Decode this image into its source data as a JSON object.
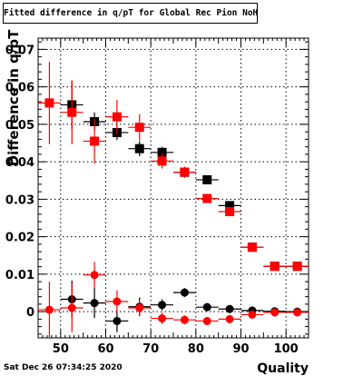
{
  "title": "Fitted difference in q/pT for Global Rec Pion NoHits",
  "datestamp": "Sat Dec 26 07:34:25 2020",
  "colors": {
    "series_black": "#000000",
    "series_red": "#ff0000",
    "grid": "#000000",
    "background": "#ffffff"
  },
  "chart_data": {
    "type": "scatter",
    "title": "Fitted difference in q/pT for Global Rec Pion NoHits",
    "xlabel": "Quality",
    "ylabel": "Difference in q/pT",
    "xlim": [
      45,
      105
    ],
    "ylim": [
      -0.007,
      0.073
    ],
    "grid": true,
    "x_ticks": [
      50,
      60,
      70,
      80,
      90,
      100
    ],
    "x_tick_labels": [
      "50",
      "60",
      "70",
      "80",
      "90",
      "100"
    ],
    "y_ticks": [
      0,
      0.01,
      0.02,
      0.03,
      0.04,
      0.05,
      0.06,
      0.07
    ],
    "y_tick_labels": [
      "0",
      "0.01",
      "0.02",
      "0.03",
      "0.04",
      "0.05",
      "0.06",
      "0.07"
    ],
    "series": [
      {
        "marker": "square",
        "color": "#000000",
        "points": [
          {
            "x": 52.5,
            "y": 0.0552,
            "err": 0.0065
          },
          {
            "x": 57.5,
            "y": 0.0507,
            "err": 0.0025
          },
          {
            "x": 62.5,
            "y": 0.0478,
            "err": 0.002
          },
          {
            "x": 67.5,
            "y": 0.0435,
            "err": 0.002
          },
          {
            "x": 72.5,
            "y": 0.0425,
            "err": 0.0015
          },
          {
            "x": 77.5,
            "y": 0.0372,
            "err": 0.0012
          },
          {
            "x": 82.5,
            "y": 0.0352,
            "err": 0.001
          },
          {
            "x": 87.5,
            "y": 0.0283,
            "err": 0.001
          },
          {
            "x": 92.5,
            "y": 0.0172,
            "err": 0.0008
          },
          {
            "x": 97.5,
            "y": 0.0121,
            "err": 0.0006
          },
          {
            "x": 102.5,
            "y": 0.0121,
            "err": 0.0006
          }
        ]
      },
      {
        "marker": "square",
        "color": "#ff0000",
        "points": [
          {
            "x": 47.5,
            "y": 0.0557,
            "err": 0.011
          },
          {
            "x": 52.5,
            "y": 0.0532,
            "err": 0.0085
          },
          {
            "x": 57.5,
            "y": 0.0455,
            "err": 0.006
          },
          {
            "x": 62.5,
            "y": 0.052,
            "err": 0.0045
          },
          {
            "x": 67.5,
            "y": 0.0492,
            "err": 0.0035
          },
          {
            "x": 72.5,
            "y": 0.0402,
            "err": 0.002
          },
          {
            "x": 77.5,
            "y": 0.0372,
            "err": 0.0015
          },
          {
            "x": 82.5,
            "y": 0.0302,
            "err": 0.0012
          },
          {
            "x": 87.5,
            "y": 0.0267,
            "err": 0.0012
          },
          {
            "x": 92.5,
            "y": 0.0172,
            "err": 0.0008
          },
          {
            "x": 97.5,
            "y": 0.0121,
            "err": 0.0006
          },
          {
            "x": 102.5,
            "y": 0.0121,
            "err": 0.0006
          }
        ]
      },
      {
        "marker": "circle",
        "color": "#000000",
        "points": [
          {
            "x": 52.5,
            "y": 0.0033,
            "err": 0.005
          },
          {
            "x": 57.5,
            "y": 0.0023,
            "err": 0.004
          },
          {
            "x": 62.5,
            "y": -0.0025,
            "err": 0.003
          },
          {
            "x": 67.5,
            "y": 0.0013,
            "err": 0.0025
          },
          {
            "x": 72.5,
            "y": 0.0018,
            "err": 0.0015
          },
          {
            "x": 77.5,
            "y": 0.0051,
            "err": 0.0012
          },
          {
            "x": 82.5,
            "y": 0.0012,
            "err": 0.001
          },
          {
            "x": 87.5,
            "y": 0.0007,
            "err": 0.0008
          },
          {
            "x": 92.5,
            "y": 0.0003,
            "err": 0.0006
          },
          {
            "x": 97.5,
            "y": 0.0001,
            "err": 0.0005
          },
          {
            "x": 102.5,
            "y": 0.0,
            "err": 0.0005
          }
        ]
      },
      {
        "marker": "circle",
        "color": "#ff0000",
        "points": [
          {
            "x": 47.5,
            "y": 0.0005,
            "err": 0.0075
          },
          {
            "x": 52.5,
            "y": 0.001,
            "err": 0.0065
          },
          {
            "x": 57.5,
            "y": 0.0098,
            "err": 0.0035
          },
          {
            "x": 62.5,
            "y": 0.0027,
            "err": 0.003
          },
          {
            "x": 67.5,
            "y": 0.001,
            "err": 0.002
          },
          {
            "x": 72.5,
            "y": -0.0018,
            "err": 0.0015
          },
          {
            "x": 77.5,
            "y": -0.0022,
            "err": 0.0012
          },
          {
            "x": 82.5,
            "y": -0.0025,
            "err": 0.001
          },
          {
            "x": 87.5,
            "y": -0.002,
            "err": 0.0008
          },
          {
            "x": 92.5,
            "y": -0.0008,
            "err": 0.0006
          },
          {
            "x": 97.5,
            "y": -0.0002,
            "err": 0.0005
          },
          {
            "x": 102.5,
            "y": -0.0002,
            "err": 0.0005
          }
        ]
      }
    ]
  }
}
